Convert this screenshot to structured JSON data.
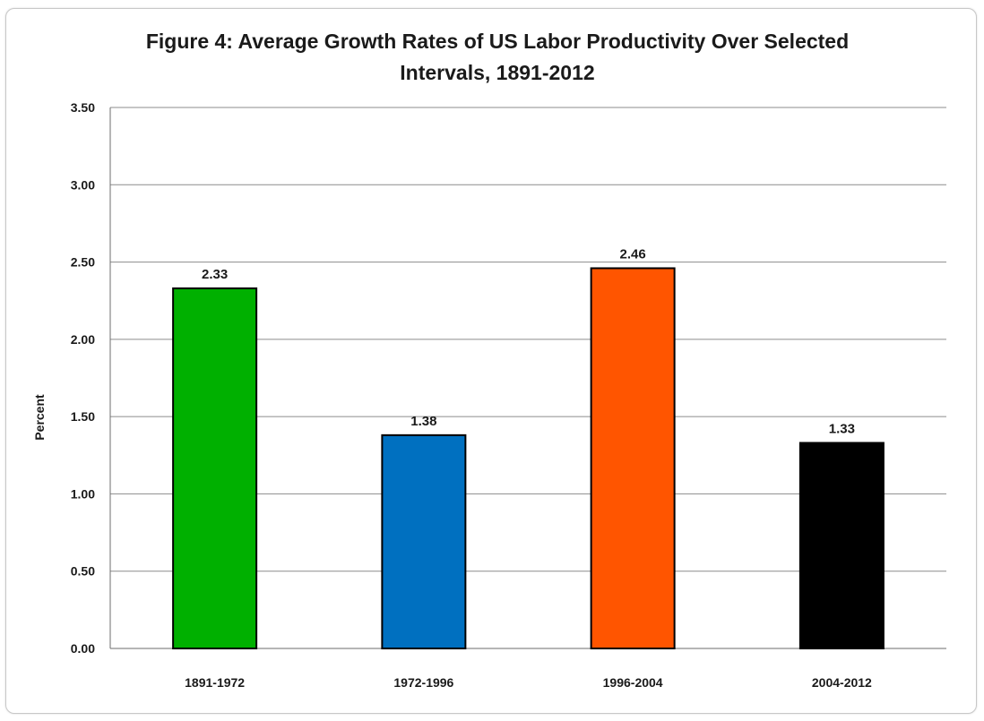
{
  "chart_data": {
    "type": "bar",
    "title_line1": "Figure 4: Average Growth Rates of US Labor Productivity Over Selected",
    "title_line2": "Intervals, 1891-2012",
    "xlabel": "",
    "ylabel": "Percent",
    "ylim": [
      0,
      3.5
    ],
    "y_ticks": [
      "0.00",
      "0.50",
      "1.00",
      "1.50",
      "2.00",
      "2.50",
      "3.00",
      "3.50"
    ],
    "y_tick_values": [
      0,
      0.5,
      1.0,
      1.5,
      2.0,
      2.5,
      3.0,
      3.5
    ],
    "grid": true,
    "categories": [
      "1891-1972",
      "1972-1996",
      "1996-2004",
      "2004-2012"
    ],
    "values": [
      2.33,
      1.38,
      2.46,
      1.33
    ],
    "value_labels": [
      "2.33",
      "1.38",
      "2.46",
      "1.33"
    ],
    "bar_colors": [
      "#00b000",
      "#0070c0",
      "#ff5500",
      "#000000"
    ]
  }
}
